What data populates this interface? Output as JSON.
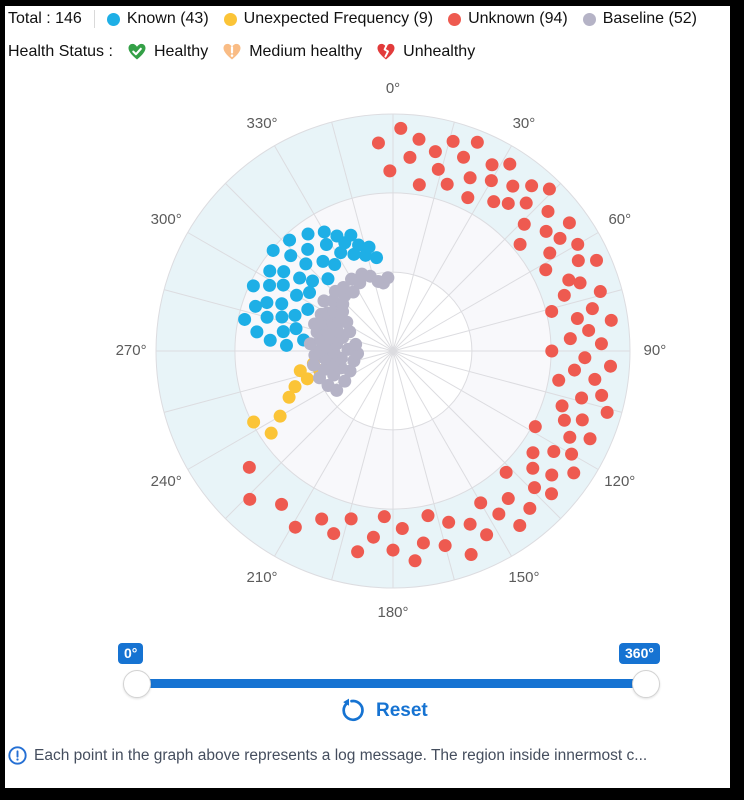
{
  "header": {
    "total_label": "Total : 146",
    "legend": [
      {
        "label": "Known (43)",
        "color": "#1eafe6"
      },
      {
        "label": "Unexpected Frequency (9)",
        "color": "#fbc437"
      },
      {
        "label": "Unknown (94)",
        "color": "#ee5a50"
      },
      {
        "label": "Baseline (52)",
        "color": "#b5b3c6"
      }
    ],
    "health": {
      "label": "Health Status :",
      "items": [
        {
          "label": "Healthy",
          "icon": "healthy-heart-check-icon",
          "color": "#34a047"
        },
        {
          "label": "Medium healthy",
          "icon": "medium-healthy-heart-exclamation-icon",
          "color": "#f9bc85"
        },
        {
          "label": "Unhealthy",
          "icon": "unhealthy-broken-heart-icon",
          "color": "#e23b3b"
        }
      ]
    }
  },
  "slider": {
    "min_label": "0°",
    "max_label": "360°",
    "reset_label": "Reset",
    "selected_range_deg": [
      0,
      360
    ]
  },
  "footer": {
    "text": "Each point in the graph above represents a log message. The region inside innermost c..."
  },
  "chart_data": {
    "type": "scatter",
    "polar": true,
    "angular_labels": [
      "0°",
      "30°",
      "60°",
      "90°",
      "120°",
      "150°",
      "180°",
      "210°",
      "240°",
      "270°",
      "300°",
      "330°"
    ],
    "angular_tick_step_deg": 30,
    "minor_spoke_step_deg": 15,
    "radial_rings_norm": [
      0.333,
      0.667,
      1.0
    ],
    "ring_fills": {
      "inner": "#ffffff",
      "middle": "#f8f8fb",
      "outer": "#e8f4f8"
    },
    "grid_color": "#dcdce0",
    "point_radius_px": 6.5,
    "series": [
      {
        "name": "Known",
        "count": 43,
        "color": "#1eafe6",
        "points": [
          [
            273,
            0.45
          ],
          [
            275,
            0.52
          ],
          [
            277,
            0.38
          ],
          [
            278,
            0.58
          ],
          [
            280,
            0.47
          ],
          [
            282,
            0.64
          ],
          [
            283,
            0.42
          ],
          [
            285,
            0.55
          ],
          [
            287,
            0.49
          ],
          [
            288,
            0.61
          ],
          [
            290,
            0.44
          ],
          [
            291,
            0.57
          ],
          [
            293,
            0.51
          ],
          [
            295,
            0.65
          ],
          [
            296,
            0.4
          ],
          [
            298,
            0.59
          ],
          [
            300,
            0.47
          ],
          [
            301,
            0.54
          ],
          [
            303,
            0.62
          ],
          [
            305,
            0.43
          ],
          [
            306,
            0.57
          ],
          [
            308,
            0.5
          ],
          [
            310,
            0.66
          ],
          [
            311,
            0.45
          ],
          [
            313,
            0.59
          ],
          [
            315,
            0.52
          ],
          [
            317,
            0.64
          ],
          [
            318,
            0.41
          ],
          [
            320,
            0.56
          ],
          [
            322,
            0.48
          ],
          [
            324,
            0.61
          ],
          [
            326,
            0.44
          ],
          [
            328,
            0.53
          ],
          [
            330,
            0.58
          ],
          [
            332,
            0.47
          ],
          [
            334,
            0.54
          ],
          [
            336,
            0.5
          ],
          [
            338,
            0.44
          ],
          [
            340,
            0.52
          ],
          [
            342,
            0.47
          ],
          [
            344,
            0.42
          ],
          [
            347,
            0.45
          ],
          [
            350,
            0.4
          ]
        ]
      },
      {
        "name": "Unexpected Frequency",
        "count": 9,
        "color": "#fbc437",
        "points": [
          [
            236,
            0.62
          ],
          [
            240,
            0.55
          ],
          [
            243,
            0.66
          ],
          [
            246,
            0.48
          ],
          [
            250,
            0.44
          ],
          [
            252,
            0.38
          ],
          [
            255,
            0.32
          ],
          [
            258,
            0.4
          ],
          [
            261,
            0.34
          ]
        ]
      },
      {
        "name": "Unknown",
        "count": 94,
        "color": "#ee5a50",
        "points": [
          [
            356,
            0.88
          ],
          [
            359,
            0.76
          ],
          [
            2,
            0.94
          ],
          [
            5,
            0.82
          ],
          [
            7,
            0.9
          ],
          [
            9,
            0.71
          ],
          [
            12,
            0.86
          ],
          [
            14,
            0.79
          ],
          [
            16,
            0.92
          ],
          [
            18,
            0.74
          ],
          [
            20,
            0.87
          ],
          [
            22,
            0.95
          ],
          [
            24,
            0.8
          ],
          [
            26,
            0.72
          ],
          [
            28,
            0.89
          ],
          [
            30,
            0.83
          ],
          [
            32,
            0.93
          ],
          [
            34,
            0.76
          ],
          [
            36,
            0.86
          ],
          [
            38,
            0.79
          ],
          [
            40,
            0.91
          ],
          [
            42,
            0.84
          ],
          [
            44,
            0.95
          ],
          [
            46,
            0.77
          ],
          [
            48,
            0.88
          ],
          [
            50,
            0.7
          ],
          [
            52,
            0.82
          ],
          [
            54,
            0.92
          ],
          [
            56,
            0.85
          ],
          [
            58,
            0.78
          ],
          [
            60,
            0.9
          ],
          [
            62,
            0.73
          ],
          [
            64,
            0.87
          ],
          [
            66,
            0.94
          ],
          [
            68,
            0.8
          ],
          [
            70,
            0.84
          ],
          [
            72,
            0.76
          ],
          [
            74,
            0.91
          ],
          [
            76,
            0.69
          ],
          [
            78,
            0.86
          ],
          [
            80,
            0.79
          ],
          [
            82,
            0.93
          ],
          [
            84,
            0.83
          ],
          [
            86,
            0.75
          ],
          [
            88,
            0.88
          ],
          [
            90,
            0.67
          ],
          [
            92,
            0.81
          ],
          [
            94,
            0.92
          ],
          [
            96,
            0.77
          ],
          [
            98,
            0.86
          ],
          [
            100,
            0.71
          ],
          [
            102,
            0.9
          ],
          [
            104,
            0.82
          ],
          [
            106,
            0.94
          ],
          [
            108,
            0.75
          ],
          [
            110,
            0.85
          ],
          [
            112,
            0.78
          ],
          [
            114,
            0.91
          ],
          [
            116,
            0.83
          ],
          [
            118,
            0.68
          ],
          [
            120,
            0.87
          ],
          [
            122,
            0.8
          ],
          [
            124,
            0.92
          ],
          [
            126,
            0.73
          ],
          [
            128,
            0.85
          ],
          [
            130,
            0.77
          ],
          [
            132,
            0.9
          ],
          [
            134,
            0.83
          ],
          [
            137,
            0.7
          ],
          [
            139,
            0.88
          ],
          [
            142,
            0.79
          ],
          [
            144,
            0.91
          ],
          [
            147,
            0.82
          ],
          [
            150,
            0.74
          ],
          [
            153,
            0.87
          ],
          [
            156,
            0.8
          ],
          [
            159,
            0.92
          ],
          [
            162,
            0.76
          ],
          [
            165,
            0.85
          ],
          [
            168,
            0.71
          ],
          [
            171,
            0.82
          ],
          [
            174,
            0.89
          ],
          [
            177,
            0.75
          ],
          [
            180,
            0.84
          ],
          [
            183,
            0.7
          ],
          [
            186,
            0.79
          ],
          [
            190,
            0.86
          ],
          [
            194,
            0.73
          ],
          [
            198,
            0.81
          ],
          [
            203,
            0.77
          ],
          [
            209,
            0.85
          ],
          [
            216,
            0.8
          ],
          [
            224,
            0.87
          ],
          [
            231,
            0.78
          ]
        ]
      },
      {
        "name": "Baseline",
        "count": 52,
        "color": "#b5b3c6",
        "points": [
          [
            235,
            0.29
          ],
          [
            238,
            0.24
          ],
          [
            242,
            0.31
          ],
          [
            245,
            0.2
          ],
          [
            248,
            0.27
          ],
          [
            250,
            0.33
          ],
          [
            252,
            0.23
          ],
          [
            255,
            0.3
          ],
          [
            256,
            0.17
          ],
          [
            258,
            0.26
          ],
          [
            260,
            0.34
          ],
          [
            262,
            0.22
          ],
          [
            264,
            0.29
          ],
          [
            266,
            0.15
          ],
          [
            267,
            0.33
          ],
          [
            269,
            0.25
          ],
          [
            270,
            0.31
          ],
          [
            272,
            0.19
          ],
          [
            274,
            0.28
          ],
          [
            275,
            0.35
          ],
          [
            277,
            0.24
          ],
          [
            279,
            0.31
          ],
          [
            280,
            0.16
          ],
          [
            282,
            0.27
          ],
          [
            284,
            0.33
          ],
          [
            285,
            0.22
          ],
          [
            287,
            0.29
          ],
          [
            289,
            0.35
          ],
          [
            290,
            0.25
          ],
          [
            292,
            0.31
          ],
          [
            294,
            0.2
          ],
          [
            295,
            0.28
          ],
          [
            297,
            0.34
          ],
          [
            299,
            0.26
          ],
          [
            300,
            0.32
          ],
          [
            302,
            0.23
          ],
          [
            304,
            0.3
          ],
          [
            306,
            0.36
          ],
          [
            308,
            0.27
          ],
          [
            310,
            0.33
          ],
          [
            313,
            0.29
          ],
          [
            316,
            0.35
          ],
          [
            319,
            0.31
          ],
          [
            322,
            0.34
          ],
          [
            326,
            0.3
          ],
          [
            330,
            0.35
          ],
          [
            334,
            0.32
          ],
          [
            338,
            0.35
          ],
          [
            343,
            0.33
          ],
          [
            348,
            0.3
          ],
          [
            352,
            0.29
          ],
          [
            356,
            0.31
          ]
        ]
      }
    ]
  }
}
